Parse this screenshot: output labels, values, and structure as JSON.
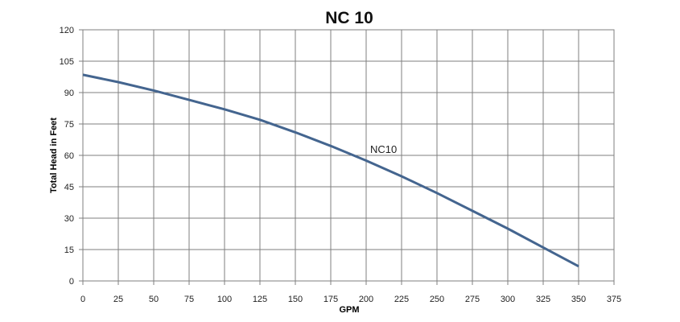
{
  "chart_data": {
    "type": "line",
    "title": "NC 10",
    "xlabel": "GPM",
    "ylabel": "Total Head in Feet",
    "xlim": [
      0,
      375
    ],
    "ylim": [
      0,
      120
    ],
    "x_ticks": [
      "0",
      "25",
      "50",
      "75",
      "100",
      "125",
      "150",
      "175",
      "200",
      "225",
      "250",
      "275",
      "300",
      "325",
      "350",
      "375"
    ],
    "y_ticks": [
      "0",
      "15",
      "30",
      "45",
      "60",
      "75",
      "90",
      "105",
      "120"
    ],
    "grid": true,
    "series": [
      {
        "name": "NC10",
        "color": "#44658f",
        "x": [
          0,
          25,
          50,
          75,
          100,
          125,
          150,
          175,
          200,
          225,
          250,
          275,
          300,
          325,
          350
        ],
        "y": [
          98.5,
          95,
          91,
          86.5,
          82,
          77,
          71,
          64.5,
          57.5,
          50,
          42,
          33.5,
          25,
          16,
          7
        ]
      }
    ]
  }
}
